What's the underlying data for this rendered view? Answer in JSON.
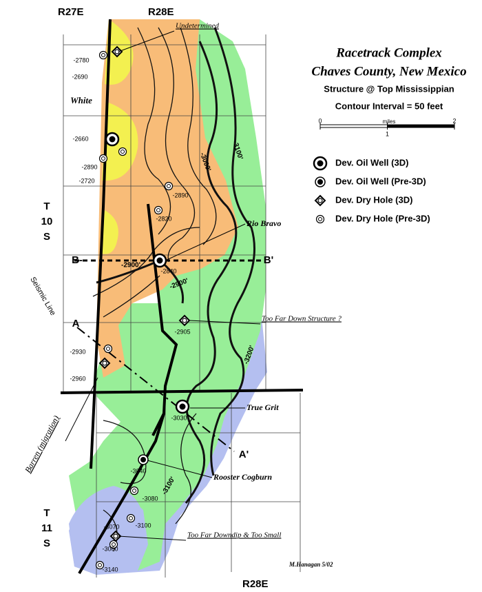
{
  "title": [
    "Racetrack Complex",
    "Chaves County, New Mexico"
  ],
  "subtitle": "Structure @ Top Mississippian",
  "contour_interval": "Contour Interval = 50 feet",
  "scale": {
    "unit": "miles",
    "ticks": [
      0,
      1,
      2
    ]
  },
  "legend": [
    "Dev. Oil Well (3D)",
    "Dev. Oil Well (Pre-3D)",
    "Dev. Dry Hole (3D)",
    "Dev. Dry Hole (Pre-3D)"
  ],
  "ranges": {
    "top": [
      "R27E",
      "R28E"
    ],
    "bottom": "R28E"
  },
  "townships": [
    [
      "T",
      "10",
      "S"
    ],
    [
      "T",
      "11",
      "S"
    ]
  ],
  "prospects": [
    "Undetermined",
    "White",
    "Rio Bravo",
    "Too Far Down Structure ?",
    "True Grit",
    "Rooster Cogburn",
    "Too Far Downdip & Too Small",
    "Barren (migration)"
  ],
  "cross_sections": [
    "B-",
    "B'",
    "A",
    "A'"
  ],
  "seismic_line": "Seismic Line",
  "wells": [
    -2780,
    -2690,
    -2660,
    -2890,
    -2720,
    -2890,
    -2820,
    -2840,
    -2905,
    -2930,
    -2960,
    -3030,
    -3040,
    -3080,
    -3100,
    -3070,
    -3060,
    -3140
  ],
  "contour_labels": [
    "-3000'",
    "-3100'",
    "-2900'",
    "-2900'",
    "-3200'",
    "-3100'"
  ],
  "credit": "M.Hanagan 5/02"
}
